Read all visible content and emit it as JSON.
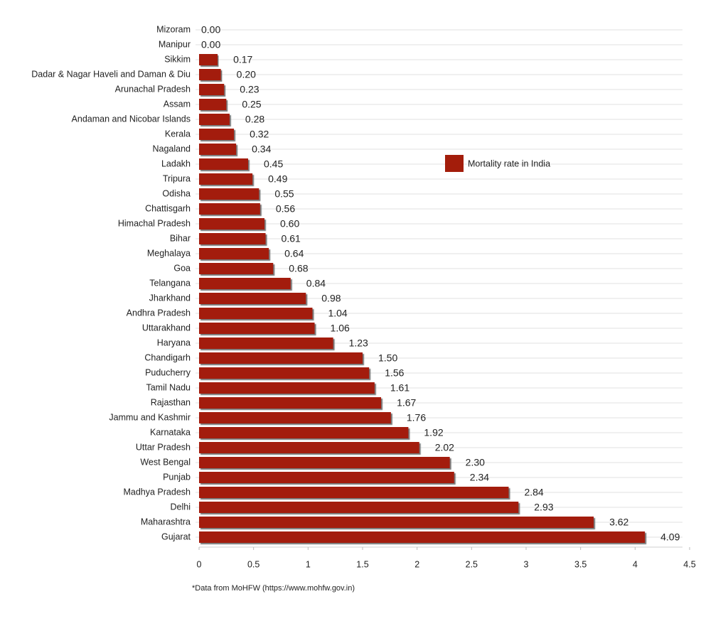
{
  "chart_data": {
    "type": "bar",
    "orientation": "horizontal",
    "categories": [
      "Mizoram",
      "Manipur",
      "Sikkim",
      "Dadar & Nagar Haveli and Daman & Diu",
      "Arunachal Pradesh",
      "Assam",
      "Andaman and Nicobar Islands",
      "Kerala",
      "Nagaland",
      "Ladakh",
      "Tripura",
      "Odisha",
      "Chattisgarh",
      "Himachal Pradesh",
      "Bihar",
      "Meghalaya",
      "Goa",
      "Telangana",
      "Jharkhand",
      "Andhra Pradesh",
      "Uttarakhand",
      "Haryana",
      "Chandigarh",
      "Puducherry",
      "Tamil Nadu",
      "Rajasthan",
      "Jammu and Kashmir",
      "Karnataka",
      "Uttar Pradesh",
      "West Bengal",
      "Punjab",
      "Madhya Pradesh",
      "Delhi",
      "Maharashtra",
      "Gujarat"
    ],
    "series": [
      {
        "name": "Mortality rate in India",
        "color": "#a31d0b",
        "values": [
          0,
          0,
          0.17,
          0.2,
          0.23,
          0.25,
          0.28,
          0.32,
          0.34,
          0.45,
          0.49,
          0.55,
          0.56,
          0.6,
          0.61,
          0.64,
          0.68,
          0.84,
          0.98,
          1.04,
          1.06,
          1.23,
          1.5,
          1.56,
          1.61,
          1.67,
          1.76,
          1.92,
          2.02,
          2.3,
          2.34,
          2.84,
          2.93,
          3.62,
          4.09
        ],
        "value_labels": [
          "0.00",
          "0.00",
          "0.17",
          "0.20",
          "0.23",
          "0.25",
          "0.28",
          "0.32",
          "0.34",
          "0.45",
          "0.49",
          "0.55",
          "0.56",
          "0.60",
          "0.61",
          "0.64",
          "0.68",
          "0.84",
          "0.98",
          "1.04",
          "1.06",
          "1.23",
          "1.50",
          "1.56",
          "1.61",
          "1.67",
          "1.76",
          "1.92",
          "2.02",
          "2.30",
          "2.34",
          "2.84",
          "2.93",
          "3.62",
          "4.09"
        ]
      }
    ],
    "xlim": [
      0,
      4.5
    ],
    "xticks": [
      0,
      0.5,
      1,
      1.5,
      2,
      2.5,
      3,
      3.5,
      4,
      4.5
    ],
    "grid": true,
    "legend": "center-right",
    "note": "*Data from MoHFW (https://www.mohfw.gov.in)"
  }
}
